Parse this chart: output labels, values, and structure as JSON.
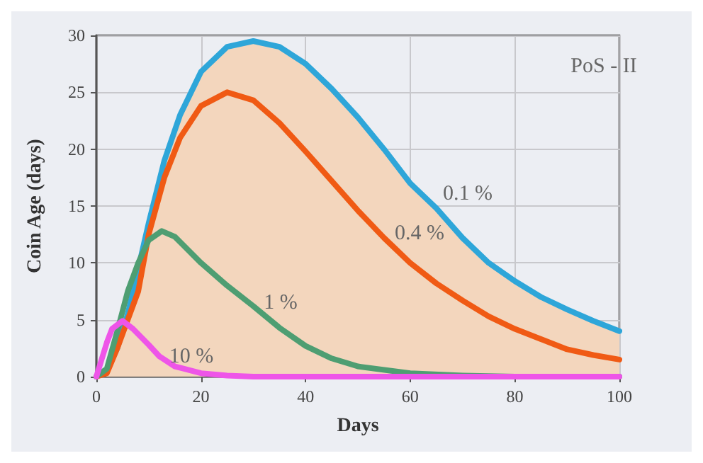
{
  "chart_data": {
    "type": "line",
    "xlabel": "Days",
    "ylabel": "Coin Age (days)",
    "xlim": [
      0,
      100
    ],
    "ylim": [
      0,
      30
    ],
    "xticks": [
      0,
      20,
      40,
      60,
      80,
      100
    ],
    "yticks": [
      0,
      5,
      10,
      15,
      20,
      25,
      30
    ],
    "grid": true,
    "marker": "none",
    "line_style": "solid",
    "series": [
      {
        "color": "#2ea6d9",
        "x": [
          0,
          2,
          4,
          6,
          8,
          10,
          13,
          16,
          20,
          25,
          30,
          35,
          40,
          45,
          50,
          55,
          60,
          65,
          70,
          75,
          80,
          85,
          90,
          95,
          100
        ],
        "values": [
          0,
          0.5,
          2.5,
          5.5,
          9.5,
          13.5,
          19,
          23,
          26.8,
          29,
          29.5,
          29,
          27.5,
          25.3,
          22.8,
          20,
          17,
          14.8,
          12.2,
          10,
          8.4,
          7,
          5.9,
          4.9,
          4.0
        ],
        "lower": [
          0,
          0,
          0,
          0,
          0,
          0,
          0,
          0,
          0,
          0,
          0,
          0,
          0,
          0,
          0,
          0,
          0,
          0,
          0,
          0,
          0,
          0,
          0,
          0,
          0
        ],
        "upper": [
          0,
          0.5,
          2.5,
          5.5,
          9.5,
          13.5,
          19,
          23,
          26.8,
          29,
          29.5,
          29,
          27.5,
          25.3,
          22.8,
          20,
          17,
          14.8,
          12.2,
          10,
          8.4,
          7,
          5.9,
          4.9,
          4.0
        ]
      },
      {
        "color": "#f05a14",
        "x": [
          0,
          2,
          4,
          6,
          8,
          10,
          13,
          16,
          20,
          25,
          30,
          35,
          40,
          45,
          50,
          55,
          60,
          65,
          70,
          75,
          80,
          85,
          90,
          95,
          100
        ],
        "values": [
          0,
          0.3,
          2.5,
          5,
          7.5,
          12.5,
          17.5,
          21,
          23.8,
          25,
          24.3,
          22.3,
          19.8,
          17.2,
          14.6,
          12.2,
          10,
          8.2,
          6.7,
          5.3,
          4.2,
          3.3,
          2.4,
          1.9,
          1.5
        ]
      },
      {
        "color": "#4e9e72",
        "x": [
          0,
          2,
          4,
          6,
          8,
          10,
          12.5,
          15,
          20,
          25,
          30,
          35,
          40,
          45,
          50,
          60,
          70,
          80,
          100
        ],
        "values": [
          0,
          0.7,
          4,
          7.5,
          10,
          12,
          12.8,
          12.3,
          10,
          8,
          6.2,
          4.3,
          2.7,
          1.6,
          0.9,
          0.3,
          0.1,
          0,
          0
        ]
      },
      {
        "color": "#ee55e8",
        "x": [
          0,
          1,
          2,
          3,
          5,
          7,
          10,
          12,
          15,
          20,
          25,
          30,
          100
        ],
        "values": [
          0,
          1.5,
          3,
          4.2,
          4.9,
          4.2,
          2.8,
          1.8,
          0.9,
          0.3,
          0.1,
          0,
          0
        ]
      }
    ],
    "annotations": [
      "PoS - II",
      "0.1 %",
      "0.4 %",
      "1 %",
      "10 %"
    ]
  }
}
